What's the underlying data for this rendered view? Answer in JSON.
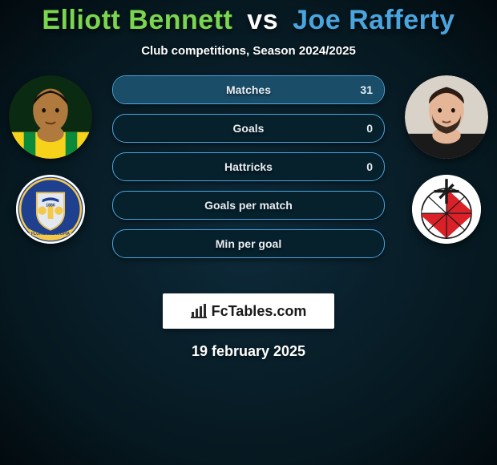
{
  "title": {
    "player1": "Elliott Bennett",
    "vs": "vs",
    "player2": "Joe Rafferty",
    "player1_color": "#7bd64f",
    "player2_color": "#4aa5de"
  },
  "subtitle": "Club competitions, Season 2024/2025",
  "stats": {
    "rows": [
      {
        "label": "Matches",
        "left": "",
        "right": "31",
        "right_fill_pct": 100,
        "right_fill_color": "#1a4d68"
      },
      {
        "label": "Goals",
        "left": "",
        "right": "0",
        "right_fill_pct": 0,
        "right_fill_color": "#1a4d68"
      },
      {
        "label": "Hattricks",
        "left": "",
        "right": "0",
        "right_fill_pct": 0,
        "right_fill_color": "#1a4d68"
      },
      {
        "label": "Goals per match",
        "left": "",
        "right": "",
        "right_fill_pct": 0,
        "right_fill_color": "#1a4d68"
      },
      {
        "label": "Min per goal",
        "left": "",
        "right": "",
        "right_fill_pct": 0,
        "right_fill_color": "#1a4d68"
      }
    ],
    "bar_border_color": "#4aa5de",
    "bar_bg_color": "#06202c"
  },
  "left": {
    "avatar": {
      "skin": "#b07a3f",
      "hair": "#1a1108",
      "shirt_main": "#f6d21a",
      "shirt_bands": "#0a8a3a"
    },
    "crest": {
      "bg": "#ffffff",
      "shield": "#1f3f8f",
      "ribbon": "#f4c94a",
      "text": "FLOREAT SALOPIA",
      "year": "1886"
    }
  },
  "right": {
    "avatar": {
      "skin": "#e4b596",
      "hair": "#2b1b12",
      "beard": "#3a2a1e",
      "shirt_main": "#1a1a1a"
    },
    "crest": {
      "bg": "#ffffff",
      "ball_red": "#da2128",
      "ball_white": "#ffffff",
      "mill": "#1a1a1a"
    }
  },
  "brand": {
    "text": "FcTables.com",
    "icon_color": "#2b2b2b"
  },
  "date": "19 february 2025",
  "colors": {
    "page_bg_inner": "#0d2a3a",
    "page_bg_outer": "#020a0e"
  }
}
